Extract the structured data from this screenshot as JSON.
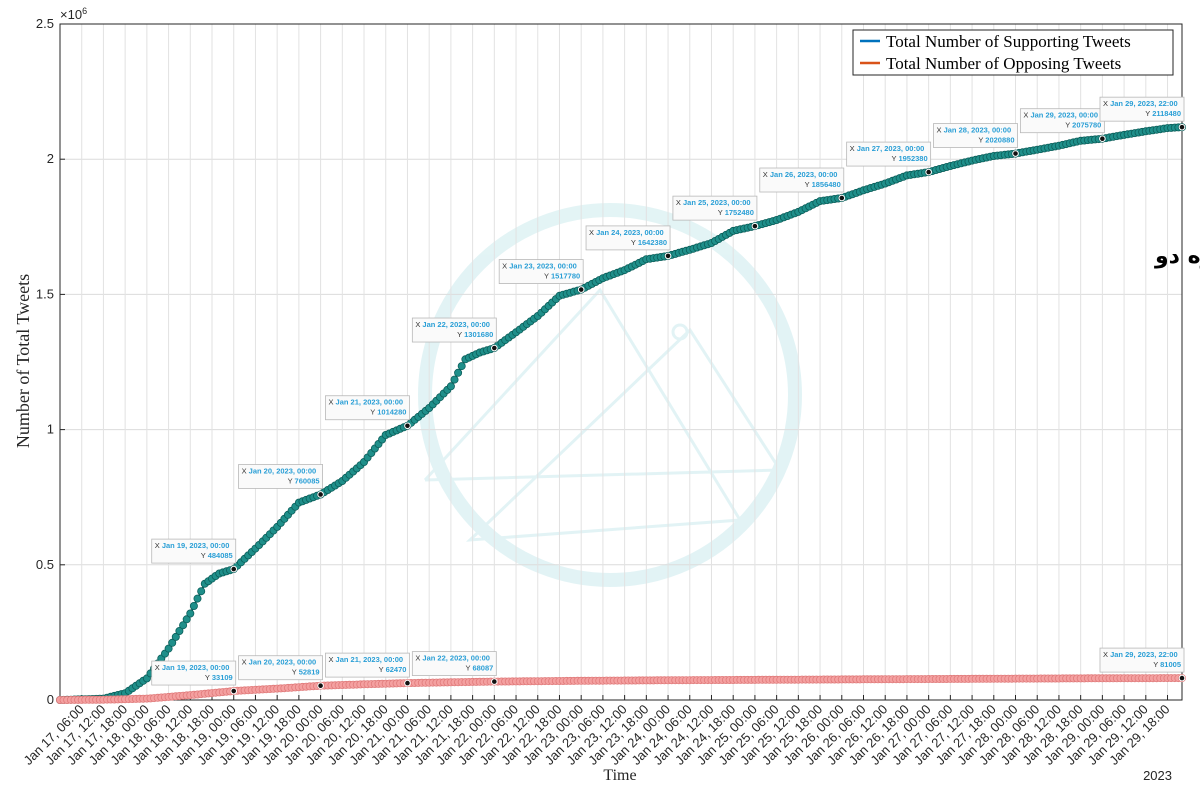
{
  "chart_data": {
    "type": "line",
    "title": "",
    "xlabel": "Time",
    "ylabel": "Number of Total Tweets",
    "y_exponent_label": "×10",
    "y_exponent_power": "6",
    "ylim": [
      0,
      2500000
    ],
    "y_ticks": [
      {
        "value": 0,
        "label": "0"
      },
      {
        "value": 500000,
        "label": "0.5"
      },
      {
        "value": 1000000,
        "label": "1"
      },
      {
        "value": 1500000,
        "label": "1.5"
      },
      {
        "value": 2000000,
        "label": "2"
      },
      {
        "value": 2500000,
        "label": "2.5"
      }
    ],
    "x_range_hours": [
      "Jan 17, 00:00",
      "Jan 29, 22:00"
    ],
    "x_tick_labels": [
      "Jan 17, 06:00",
      "Jan 17, 12:00",
      "Jan 17, 18:00",
      "Jan 18, 00:00",
      "Jan 18, 06:00",
      "Jan 18, 12:00",
      "Jan 18, 18:00",
      "Jan 19, 00:00",
      "Jan 19, 06:00",
      "Jan 19, 12:00",
      "Jan 19, 18:00",
      "Jan 20, 00:00",
      "Jan 20, 06:00",
      "Jan 20, 12:00",
      "Jan 20, 18:00",
      "Jan 21, 00:00",
      "Jan 21, 06:00",
      "Jan 21, 12:00",
      "Jan 21, 18:00",
      "Jan 22, 00:00",
      "Jan 22, 06:00",
      "Jan 22, 12:00",
      "Jan 22, 18:00",
      "Jan 23, 00:00",
      "Jan 23, 06:00",
      "Jan 23, 12:00",
      "Jan 23, 18:00",
      "Jan 24, 00:00",
      "Jan 24, 06:00",
      "Jan 24, 12:00",
      "Jan 24, 18:00",
      "Jan 25, 00:00",
      "Jan 25, 06:00",
      "Jan 25, 12:00",
      "Jan 25, 18:00",
      "Jan 26, 00:00",
      "Jan 26, 06:00",
      "Jan 26, 12:00",
      "Jan 26, 18:00",
      "Jan 27, 00:00",
      "Jan 27, 06:00",
      "Jan 27, 12:00",
      "Jan 27, 18:00",
      "Jan 28, 00:00",
      "Jan 28, 06:00",
      "Jan 28, 12:00",
      "Jan 28, 18:00",
      "Jan 29, 00:00",
      "Jan 29, 06:00",
      "Jan 29, 12:00",
      "Jan 29, 18:00"
    ],
    "x_year_label": "2023",
    "legend_position": "top-right",
    "grid": true,
    "series": [
      {
        "name": "Total Number of Supporting Tweets",
        "color": "#0072BD",
        "marker_color": "#1f8f8a",
        "marker_edge": "#0b5e5a",
        "points": [
          [
            "Jan 17, 00:00",
            0
          ],
          [
            "Jan 17, 12:00",
            5000
          ],
          [
            "Jan 17, 18:00",
            25000
          ],
          [
            "Jan 18, 00:00",
            80000
          ],
          [
            "Jan 18, 06:00",
            190000
          ],
          [
            "Jan 18, 12:00",
            320000
          ],
          [
            "Jan 18, 16:00",
            430000
          ],
          [
            "Jan 18, 20:00",
            468000
          ],
          [
            "Jan 19, 00:00",
            484085
          ],
          [
            "Jan 19, 06:00",
            560000
          ],
          [
            "Jan 19, 12:00",
            640000
          ],
          [
            "Jan 19, 18:00",
            730000
          ],
          [
            "Jan 20, 00:00",
            760085
          ],
          [
            "Jan 20, 06:00",
            810000
          ],
          [
            "Jan 20, 12:00",
            880000
          ],
          [
            "Jan 20, 18:00",
            980000
          ],
          [
            "Jan 21, 00:00",
            1014280
          ],
          [
            "Jan 21, 06:00",
            1080000
          ],
          [
            "Jan 21, 12:00",
            1160000
          ],
          [
            "Jan 21, 16:00",
            1260000
          ],
          [
            "Jan 21, 20:00",
            1285000
          ],
          [
            "Jan 22, 00:00",
            1301680
          ],
          [
            "Jan 22, 06:00",
            1360000
          ],
          [
            "Jan 22, 12:00",
            1420000
          ],
          [
            "Jan 22, 18:00",
            1495000
          ],
          [
            "Jan 23, 00:00",
            1517780
          ],
          [
            "Jan 23, 06:00",
            1560000
          ],
          [
            "Jan 23, 12:00",
            1590000
          ],
          [
            "Jan 23, 18:00",
            1630000
          ],
          [
            "Jan 24, 00:00",
            1642380
          ],
          [
            "Jan 24, 06:00",
            1665000
          ],
          [
            "Jan 24, 12:00",
            1690000
          ],
          [
            "Jan 24, 18:00",
            1735000
          ],
          [
            "Jan 25, 00:00",
            1752480
          ],
          [
            "Jan 25, 06:00",
            1775000
          ],
          [
            "Jan 25, 12:00",
            1805000
          ],
          [
            "Jan 25, 18:00",
            1845000
          ],
          [
            "Jan 26, 00:00",
            1856480
          ],
          [
            "Jan 26, 06:00",
            1885000
          ],
          [
            "Jan 26, 12:00",
            1910000
          ],
          [
            "Jan 26, 18:00",
            1940000
          ],
          [
            "Jan 27, 00:00",
            1952380
          ],
          [
            "Jan 27, 06:00",
            1975000
          ],
          [
            "Jan 27, 12:00",
            1995000
          ],
          [
            "Jan 27, 18:00",
            2012000
          ],
          [
            "Jan 28, 00:00",
            2020880
          ],
          [
            "Jan 28, 06:00",
            2035000
          ],
          [
            "Jan 28, 12:00",
            2050000
          ],
          [
            "Jan 28, 18:00",
            2068000
          ],
          [
            "Jan 29, 00:00",
            2075780
          ],
          [
            "Jan 29, 06:00",
            2090000
          ],
          [
            "Jan 29, 12:00",
            2103000
          ],
          [
            "Jan 29, 18:00",
            2115000
          ],
          [
            "Jan 29, 22:00",
            2118480
          ]
        ]
      },
      {
        "name": "Total Number of Opposing Tweets",
        "color": "#D95319",
        "marker_color": "#f4a0a0",
        "marker_edge": "#e07b7b",
        "points": [
          [
            "Jan 17, 00:00",
            0
          ],
          [
            "Jan 17, 12:00",
            1000
          ],
          [
            "Jan 18, 00:00",
            5000
          ],
          [
            "Jan 18, 12:00",
            18000
          ],
          [
            "Jan 19, 00:00",
            33109
          ],
          [
            "Jan 19, 12:00",
            42000
          ],
          [
            "Jan 20, 00:00",
            52819
          ],
          [
            "Jan 20, 12:00",
            58000
          ],
          [
            "Jan 21, 00:00",
            62470
          ],
          [
            "Jan 21, 12:00",
            65500
          ],
          [
            "Jan 22, 00:00",
            68087
          ],
          [
            "Jan 23, 00:00",
            71000
          ],
          [
            "Jan 24, 00:00",
            73000
          ],
          [
            "Jan 25, 00:00",
            74500
          ],
          [
            "Jan 26, 00:00",
            76000
          ],
          [
            "Jan 27, 00:00",
            77500
          ],
          [
            "Jan 28, 00:00",
            79000
          ],
          [
            "Jan 29, 00:00",
            80300
          ],
          [
            "Jan 29, 22:00",
            81005
          ]
        ]
      }
    ],
    "datatips": [
      {
        "series": 0,
        "x": "Jan 19, 2023, 00:00",
        "y": "484085",
        "xv": "Jan 19, 00:00",
        "yv": 484085
      },
      {
        "series": 0,
        "x": "Jan 20, 2023, 00:00",
        "y": "760085",
        "xv": "Jan 20, 00:00",
        "yv": 760085
      },
      {
        "series": 0,
        "x": "Jan 21, 2023, 00:00",
        "y": "1014280",
        "xv": "Jan 21, 00:00",
        "yv": 1014280
      },
      {
        "series": 0,
        "x": "Jan 22, 2023, 00:00",
        "y": "1301680",
        "xv": "Jan 22, 00:00",
        "yv": 1301680
      },
      {
        "series": 0,
        "x": "Jan 23, 2023, 00:00",
        "y": "1517780",
        "xv": "Jan 23, 00:00",
        "yv": 1517780
      },
      {
        "series": 0,
        "x": "Jan 24, 2023, 00:00",
        "y": "1642380",
        "xv": "Jan 24, 00:00",
        "yv": 1642380
      },
      {
        "series": 0,
        "x": "Jan 25, 2023, 00:00",
        "y": "1752480",
        "xv": "Jan 25, 00:00",
        "yv": 1752480
      },
      {
        "series": 0,
        "x": "Jan 26, 2023, 00:00",
        "y": "1856480",
        "xv": "Jan 26, 00:00",
        "yv": 1856480
      },
      {
        "series": 0,
        "x": "Jan 27, 2023, 00:00",
        "y": "1952380",
        "xv": "Jan 27, 00:00",
        "yv": 1952380
      },
      {
        "series": 0,
        "x": "Jan 28, 2023, 00:00",
        "y": "2020880",
        "xv": "Jan 28, 00:00",
        "yv": 2020880
      },
      {
        "series": 0,
        "x": "Jan 29, 2023, 00:00",
        "y": "2075780",
        "xv": "Jan 29, 00:00",
        "yv": 2075780
      },
      {
        "series": 0,
        "x": "Jan 29, 2023, 22:00",
        "y": "2118480",
        "xv": "Jan 29, 22:00",
        "yv": 2118480
      },
      {
        "series": 1,
        "x": "Jan 19, 2023, 00:00",
        "y": "33109",
        "xv": "Jan 19, 00:00",
        "yv": 33109
      },
      {
        "series": 1,
        "x": "Jan 20, 2023, 00:00",
        "y": "52819",
        "xv": "Jan 20, 00:00",
        "yv": 52819
      },
      {
        "series": 1,
        "x": "Jan 21, 2023, 00:00",
        "y": "62470",
        "xv": "Jan 21, 00:00",
        "yv": 62470
      },
      {
        "series": 1,
        "x": "Jan 22, 2023, 00:00",
        "y": "68087",
        "xv": "Jan 22, 00:00",
        "yv": 68087
      },
      {
        "series": 1,
        "x": "Jan 29, 2023, 22:00",
        "y": "81005",
        "xv": "Jan 29, 22:00",
        "yv": 81005
      }
    ],
    "annotation": "شکل شماره دو",
    "datatip_x_prefix": "X",
    "datatip_y_prefix": "Y",
    "datatip_color": "#2a9fd6"
  }
}
